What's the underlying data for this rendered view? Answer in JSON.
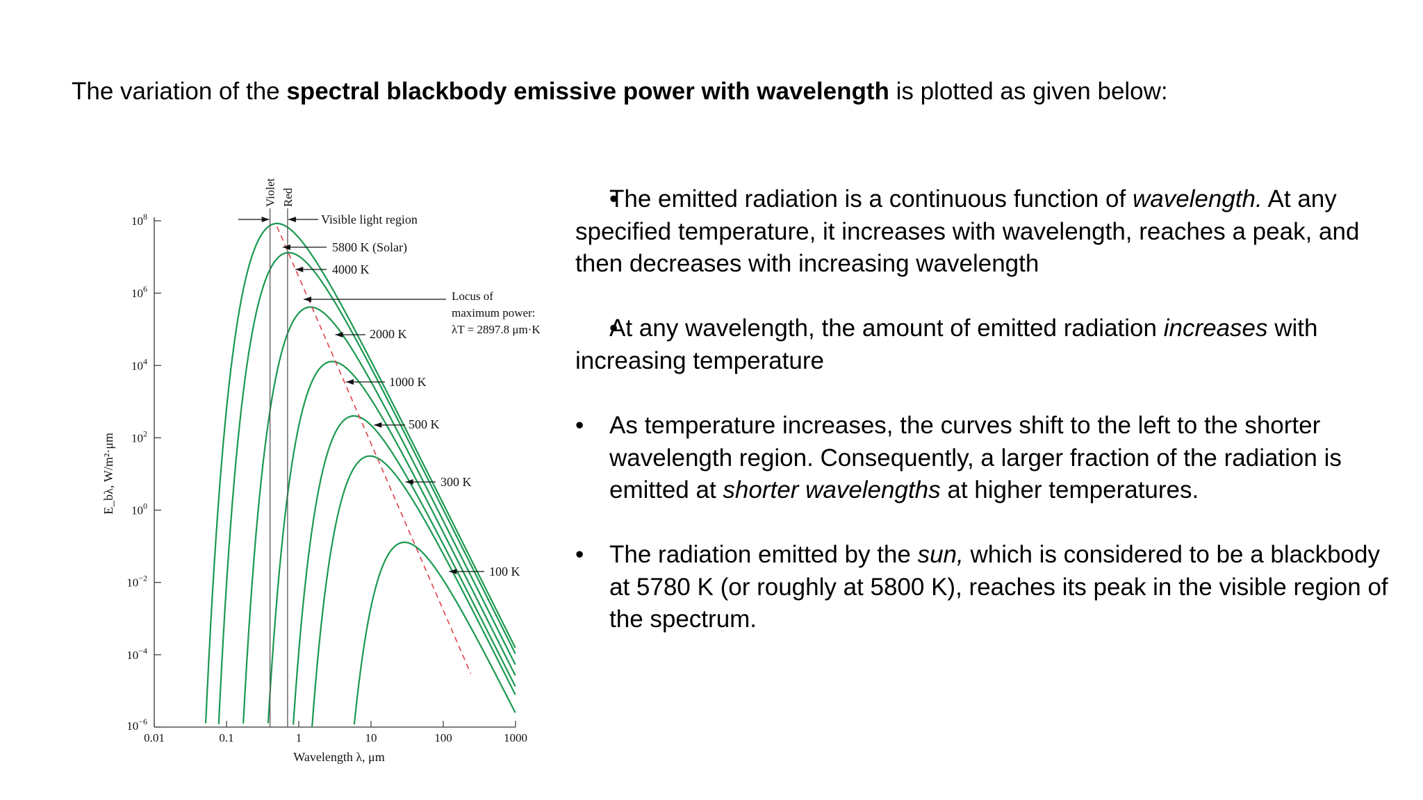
{
  "intro": {
    "pre": "The variation of the ",
    "bold": "spectral blackbody emissive power with wavelength",
    "post": " is plotted as given below:"
  },
  "chart_data": {
    "type": "line",
    "x_scale": "log",
    "y_scale": "log",
    "xlim": [
      0.01,
      1000
    ],
    "ylim": [
      1e-06,
      100000000.0
    ],
    "xlabel": "Wavelength λ, μm",
    "ylabel": "E_bλ, W/m²·μm",
    "x_ticks": [
      0.01,
      0.1,
      1,
      10,
      100,
      1000
    ],
    "x_tick_labels": [
      "0.01",
      "0.1",
      "1",
      "10",
      "100",
      "1000"
    ],
    "y_ticks": [
      100000000.0,
      1000000.0,
      10000.0,
      100.0,
      1.0,
      0.01,
      0.0001,
      1e-06
    ],
    "y_tick_labels": [
      {
        "base": "10",
        "exp": "8"
      },
      {
        "base": "10",
        "exp": "6"
      },
      {
        "base": "10",
        "exp": "4"
      },
      {
        "base": "10",
        "exp": "2"
      },
      {
        "base": "10",
        "exp": "0"
      },
      {
        "base": "10",
        "exp": "−2"
      },
      {
        "base": "10",
        "exp": "−4"
      },
      {
        "base": "10",
        "exp": "−6"
      }
    ],
    "series": [
      {
        "name": "5800 K (Solar)",
        "temperature_K": 5800,
        "peak_wavelength_um": 0.5,
        "peak_value": 69000000
      },
      {
        "name": "4000 K",
        "temperature_K": 4000,
        "peak_wavelength_um": 0.72,
        "peak_value": 15000000
      },
      {
        "name": "2000 K",
        "temperature_K": 2000,
        "peak_wavelength_um": 1.45,
        "peak_value": 470000
      },
      {
        "name": "1000 K",
        "temperature_K": 1000,
        "peak_wavelength_um": 2.9,
        "peak_value": 15000
      },
      {
        "name": "500 K",
        "temperature_K": 500,
        "peak_wavelength_um": 5.8,
        "peak_value": 460
      },
      {
        "name": "300 K",
        "temperature_K": 300,
        "peak_wavelength_um": 9.7,
        "peak_value": 36
      },
      {
        "name": "100 K",
        "temperature_K": 100,
        "peak_wavelength_um": 29,
        "peak_value": 0.15
      }
    ],
    "locus": {
      "label_lines": [
        "Locus of",
        "maximum power:",
        "λT = 2897.8 μm·K"
      ],
      "color": "#e0404a"
    },
    "visible_region": {
      "label": "Visible light region",
      "violet_label": "Violet",
      "red_label": "Red",
      "violet_um": 0.4,
      "red_um": 0.7
    },
    "curve_color": "#1a9850"
  },
  "bullets": [
    {
      "segments": [
        {
          "t": "The emitted radiation is a continuous function of ",
          "i": false
        },
        {
          "t": "wavelength.",
          "i": true
        },
        {
          "t": " At any specified temperature, it increases with wavelength, reaches a peak, and then decreases with increasing wavelength",
          "i": false
        }
      ]
    },
    {
      "segments": [
        {
          "t": "At any wavelength, the amount of emitted radiation ",
          "i": false
        },
        {
          "t": "increases",
          "i": true
        },
        {
          "t": " with increasing temperature",
          "i": false
        }
      ]
    },
    {
      "segments": [
        {
          "t": "As temperature increases, the curves shift to the left to the shorter wavelength region. Consequently, a larger fraction of the radiation is emitted at ",
          "i": false
        },
        {
          "t": "shorter wavelengths",
          "i": true
        },
        {
          "t": " at higher temperatures.",
          "i": false
        }
      ]
    },
    {
      "segments": [
        {
          "t": "The radiation emitted by the ",
          "i": false
        },
        {
          "t": "sun,",
          "i": true
        },
        {
          "t": " which is considered to be a blackbody at 5780 K (or roughly at 5800 K), reaches its peak in the visible region of the spectrum.",
          "i": false
        }
      ]
    }
  ],
  "bullet_glyph": "•"
}
